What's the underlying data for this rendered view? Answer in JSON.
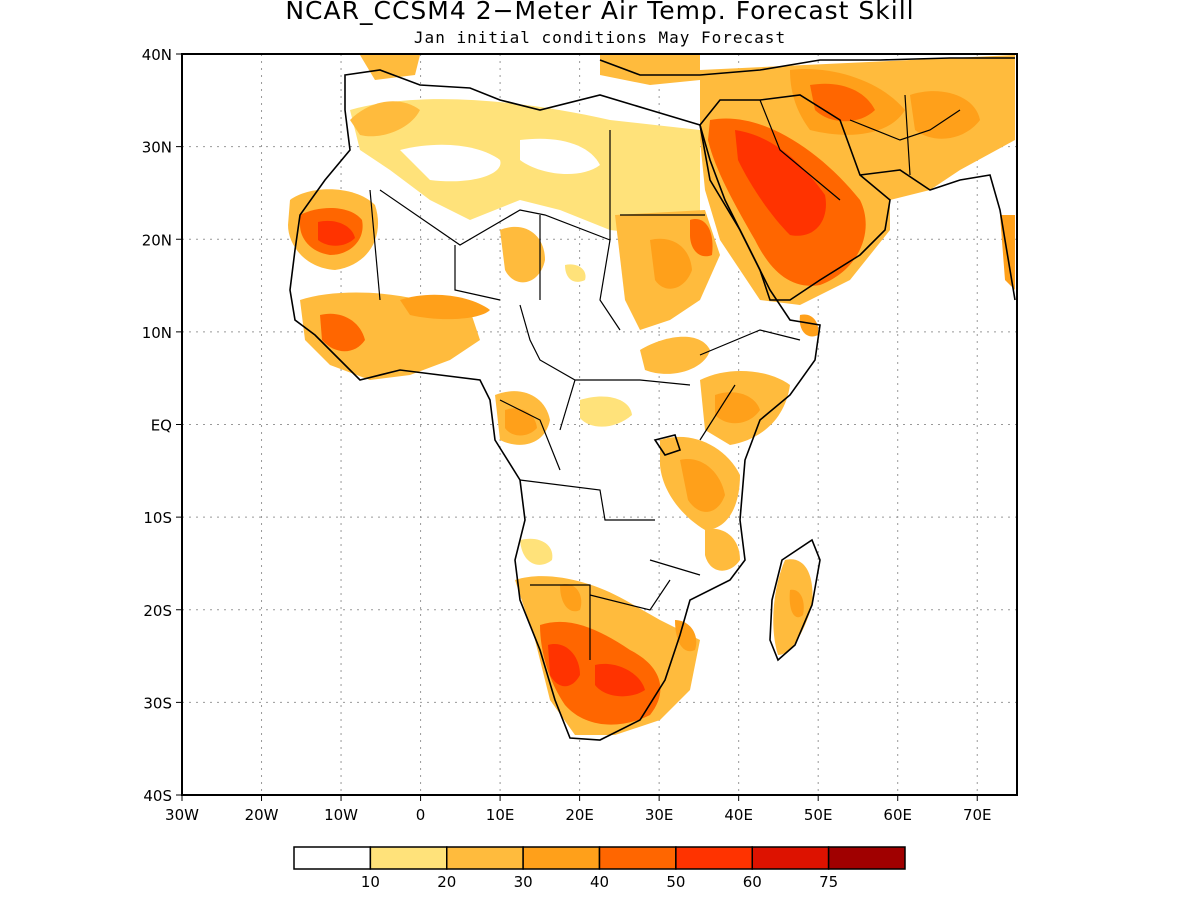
{
  "title": "NCAR_CCSM4 2−Meter Air Temp. Forecast Skill",
  "subtitle": "Jan initial conditions  May Forecast",
  "map": {
    "lon_range": [
      -30,
      75
    ],
    "lat_range": [
      -40,
      40
    ],
    "lon_ticks": [
      "30W",
      "20W",
      "10W",
      "0",
      "10E",
      "20E",
      "30E",
      "40E",
      "50E",
      "60E",
      "70E"
    ],
    "lat_ticks": [
      "40N",
      "30N",
      "20N",
      "10N",
      "EQ",
      "10S",
      "20S",
      "30S",
      "40S"
    ],
    "grid": "dotted"
  },
  "legend": {
    "colors": [
      "#ffffff",
      "#ffe27a",
      "#ffbb3d",
      "#ffa01a",
      "#ff6600",
      "#ff3300",
      "#dd1200",
      "#a00000"
    ],
    "labels": [
      "10",
      "20",
      "30",
      "40",
      "50",
      "60",
      "75"
    ]
  }
}
